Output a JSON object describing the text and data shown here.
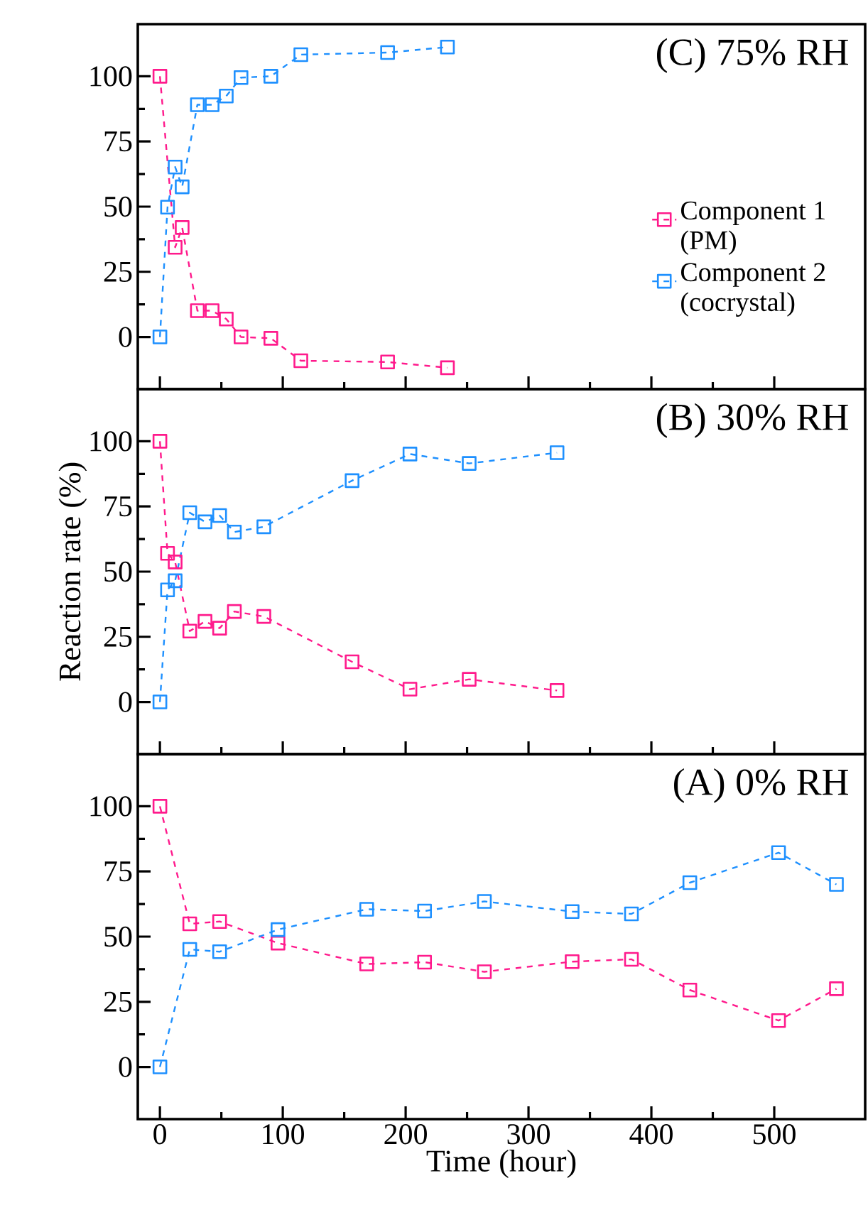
{
  "chart_data": [
    {
      "type": "line",
      "title": "(C) 75% RH",
      "xlim": [
        -18,
        574
      ],
      "ylim": [
        -20,
        120
      ],
      "xticks": [
        0,
        100,
        200,
        300,
        400,
        500
      ],
      "yticks": [
        0,
        25,
        50,
        75,
        100
      ],
      "tick_labels": "y",
      "marker": "square",
      "line_style": "dashed",
      "legend": "right",
      "series": [
        {
          "name": "Component 1 (PM)",
          "color": "#ff1a8c",
          "x": [
            0,
            12.4,
            18.1,
            30.5,
            42.5,
            54,
            66,
            90.3,
            114.7,
            185.3,
            234
          ],
          "values": [
            100,
            34.4,
            42,
            10.1,
            10.1,
            6.9,
            0,
            -0.5,
            -9.1,
            -9.6,
            -11.8
          ]
        },
        {
          "name": "Component 2 (cocrystal)",
          "color": "#1e90ff",
          "x": [
            0,
            6.2,
            12.4,
            18.1,
            30.5,
            42.5,
            54,
            66,
            90.3,
            114.7,
            185.3,
            234
          ],
          "values": [
            0,
            49.8,
            65.2,
            57.6,
            89.1,
            89.1,
            92.4,
            99.5,
            100,
            108.3,
            109.1,
            111.2
          ]
        }
      ]
    },
    {
      "type": "line",
      "title": "(B) 30% RH",
      "ylabel": "Reaction rate (%)",
      "xlim": [
        -18,
        574
      ],
      "ylim": [
        -20,
        120
      ],
      "xticks": [
        0,
        100,
        200,
        300,
        400,
        500
      ],
      "yticks": [
        0,
        25,
        50,
        75,
        100
      ],
      "tick_labels": "y",
      "marker": "square",
      "line_style": "dashed",
      "series": [
        {
          "color": "#ff1a8c",
          "x": [
            0,
            6.2,
            12.4,
            24.3,
            36.7,
            48.6,
            60.6,
            84.6,
            156.4,
            203.5,
            251.7,
            323.2
          ],
          "values": [
            100,
            57,
            53.7,
            27.2,
            30.9,
            28.3,
            34.7,
            32.8,
            15.4,
            4.9,
            8.7,
            4.4
          ]
        },
        {
          "color": "#1e90ff",
          "x": [
            0,
            6.2,
            12.4,
            24.3,
            36.7,
            48.6,
            60.6,
            84.6,
            156.4,
            203.5,
            251.7,
            323.2
          ],
          "values": [
            0,
            43,
            46.5,
            72.6,
            69.1,
            71.5,
            65.2,
            67.2,
            84.9,
            95.1,
            91.5,
            95.6
          ]
        }
      ]
    },
    {
      "type": "line",
      "title": "(A) 0% RH",
      "xlabel": "Time (hour)",
      "xlim": [
        -18,
        574
      ],
      "ylim": [
        -20,
        120
      ],
      "xticks": [
        0,
        100,
        200,
        300,
        400,
        500
      ],
      "yticks": [
        0,
        25,
        50,
        75,
        100
      ],
      "marker": "square",
      "line_style": "dashed",
      "series": [
        {
          "color": "#ff1a8c",
          "x": [
            0,
            24.3,
            48.6,
            96.1,
            168.3,
            215.4,
            264.1,
            335.5,
            383.8,
            431.3,
            503.5,
            550.6
          ],
          "values": [
            100,
            54.9,
            55.8,
            47.5,
            39.5,
            40.2,
            36.5,
            40.4,
            41.3,
            29.5,
            17.8,
            30
          ]
        },
        {
          "color": "#1e90ff",
          "x": [
            0,
            24.3,
            48.6,
            96.1,
            168.3,
            215.4,
            264.1,
            335.5,
            383.8,
            431.3,
            503.5,
            550.6
          ],
          "values": [
            0,
            45.1,
            44.2,
            52.7,
            60.5,
            59.8,
            63.5,
            59.6,
            58.7,
            70.7,
            82.2,
            70
          ]
        }
      ]
    }
  ]
}
